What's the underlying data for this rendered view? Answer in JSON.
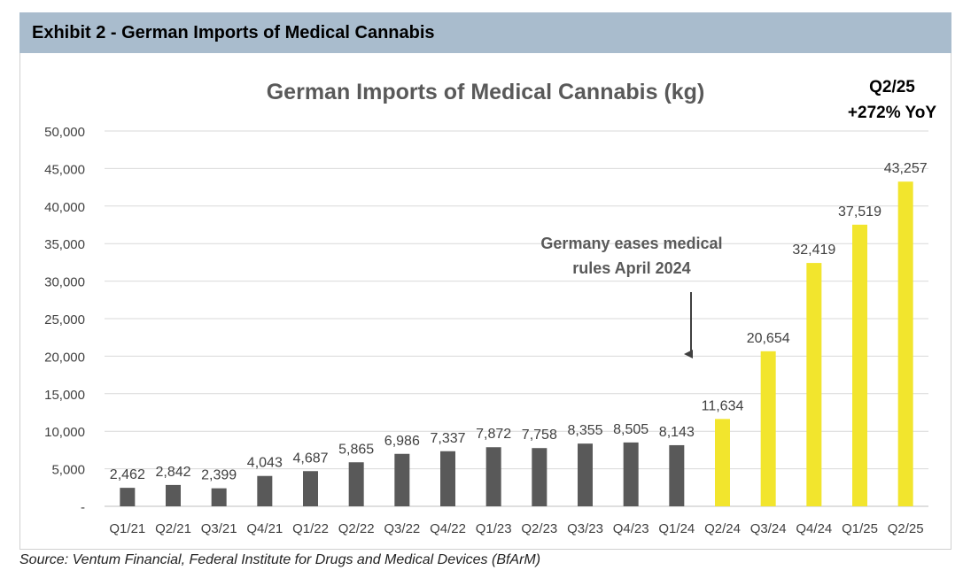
{
  "exhibit": {
    "title": "Exhibit 2 - German Imports of Medical Cannabis"
  },
  "source": "Source: Ventum Financial, Federal Institute for Drugs and Medical Devices (BfArM)",
  "colors": {
    "header_bg": "#a9bccd",
    "bar_pre": "#595959",
    "bar_post": "#f2e52d",
    "grid": "#d9d9d9",
    "text": "#404040"
  },
  "chart_data": {
    "type": "bar",
    "title": "German Imports of Medical Cannabis (kg)",
    "xlabel": "",
    "ylabel": "",
    "ylim": [
      0,
      50000
    ],
    "yticks": [
      0,
      5000,
      10000,
      15000,
      20000,
      25000,
      30000,
      35000,
      40000,
      45000,
      50000
    ],
    "ytick_labels": [
      "-",
      "5,000",
      "10,000",
      "15,000",
      "20,000",
      "25,000",
      "30,000",
      "35,000",
      "40,000",
      "45,000",
      "50,000"
    ],
    "grid": true,
    "categories": [
      "Q1/21",
      "Q2/21",
      "Q3/21",
      "Q4/21",
      "Q1/22",
      "Q2/22",
      "Q3/22",
      "Q4/22",
      "Q1/23",
      "Q2/23",
      "Q3/23",
      "Q4/23",
      "Q1/24",
      "Q2/24",
      "Q3/24",
      "Q4/24",
      "Q1/25",
      "Q2/25"
    ],
    "values": [
      2462,
      2842,
      2399,
      4043,
      4687,
      5865,
      6986,
      7337,
      7872,
      7758,
      8355,
      8505,
      8143,
      11634,
      20654,
      32419,
      37519,
      43257
    ],
    "value_labels": [
      "2,462",
      "2,842",
      "2,399",
      "4,043",
      "4,687",
      "5,865",
      "6,986",
      "7,337",
      "7,872",
      "7,758",
      "8,355",
      "8,505",
      "8,143",
      "11,634",
      "20,654",
      "32,419",
      "37,519",
      "43,257"
    ],
    "highlight_from_index": 13,
    "annotations": {
      "callout_lines": [
        "Q2/25",
        "+272% YoY"
      ],
      "event_lines": [
        "Germany eases medical",
        "rules April 2024"
      ]
    }
  }
}
